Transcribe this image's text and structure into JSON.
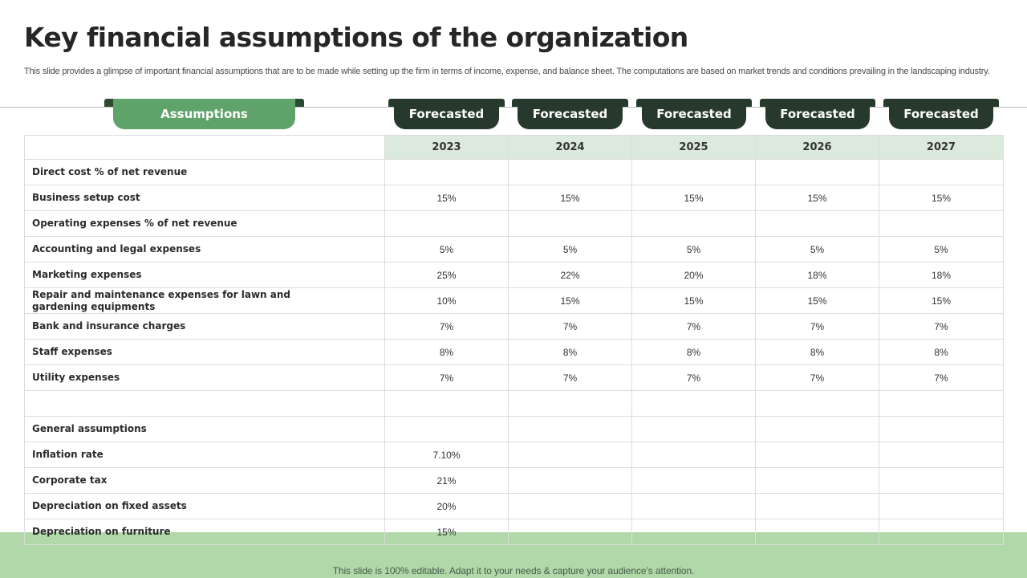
{
  "title": "Key financial assumptions of the organization",
  "subtitle": "This slide provides a glimpse of important financial assumptions that are to be made while setting up the firm in terms of income, expense, and balance sheet. The computations are based on market trends and conditions prevailing in the landscaping industry.",
  "headers": {
    "assumptions": "Assumptions",
    "forecasted": [
      "Forecasted",
      "Forecasted",
      "Forecasted",
      "Forecasted",
      "Forecasted"
    ]
  },
  "years": [
    "2023",
    "2024",
    "2025",
    "2026",
    "2027"
  ],
  "rows": [
    {
      "label": "Direct cost % of net revenue",
      "values": [
        "",
        "",
        "",
        "",
        ""
      ]
    },
    {
      "label": "Business setup cost",
      "values": [
        "15%",
        "15%",
        "15%",
        "15%",
        "15%"
      ]
    },
    {
      "label": "Operating expenses % of net revenue",
      "values": [
        "",
        "",
        "",
        "",
        ""
      ]
    },
    {
      "label": "Accounting and legal expenses",
      "values": [
        "5%",
        "5%",
        "5%",
        "5%",
        "5%"
      ]
    },
    {
      "label": "Marketing expenses",
      "values": [
        "25%",
        "22%",
        "20%",
        "18%",
        "18%"
      ]
    },
    {
      "label": "Repair and maintenance expenses for lawn and gardening equipments",
      "values": [
        "10%",
        "15%",
        "15%",
        "15%",
        "15%"
      ]
    },
    {
      "label": "Bank and insurance charges",
      "values": [
        "7%",
        "7%",
        "7%",
        "7%",
        "7%"
      ]
    },
    {
      "label": "Staff expenses",
      "values": [
        "8%",
        "8%",
        "8%",
        "8%",
        "8%"
      ]
    },
    {
      "label": "Utility expenses",
      "values": [
        "7%",
        "7%",
        "7%",
        "7%",
        "7%"
      ]
    },
    {
      "label": "",
      "values": [
        "",
        "",
        "",
        "",
        ""
      ]
    },
    {
      "label": "General assumptions",
      "values": [
        "",
        "",
        "",
        "",
        ""
      ]
    },
    {
      "label": "Inflation rate",
      "values": [
        "7.10%",
        "",
        "",
        "",
        ""
      ]
    },
    {
      "label": "Corporate tax",
      "values": [
        "21%",
        "",
        "",
        "",
        ""
      ]
    },
    {
      "label": "Depreciation on fixed assets",
      "values": [
        "20%",
        "",
        "",
        "",
        ""
      ]
    },
    {
      "label": "Depreciation on furniture",
      "values": [
        "15%",
        "",
        "",
        "",
        ""
      ]
    }
  ],
  "footer": "This slide is 100% editable. Adapt it to your needs & capture your audience’s attention.",
  "colors": {
    "assumptions_tab": "#5fa26a",
    "forecast_tab": "#27392d",
    "year_header_bg": "#dbeadd",
    "bottom_band": "#b1d8a8"
  }
}
